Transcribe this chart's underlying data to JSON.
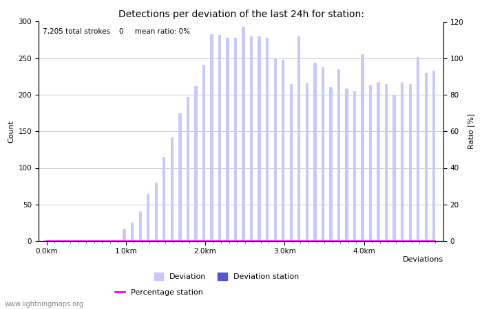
{
  "title": "Detections per deviation of the last 24h for station:",
  "subtitle": "7,205 total strokes    0     mean ratio: 0%",
  "xlabel": "Deviations",
  "ylabel_left": "Count",
  "ylabel_right": "Ratio [%]",
  "ylim_left": [
    0,
    300
  ],
  "ylim_right": [
    0,
    120
  ],
  "yticks_left": [
    0,
    50,
    100,
    150,
    200,
    250,
    300
  ],
  "yticks_right": [
    0,
    20,
    40,
    60,
    80,
    100,
    120
  ],
  "xtick_labels": [
    "0.0km",
    "1.0km",
    "2.0km",
    "3.0km",
    "4.0km"
  ],
  "xtick_positions": [
    0,
    10,
    20,
    30,
    40
  ],
  "bar_color": "#c8c8ff",
  "bar_station_color": "#5555cc",
  "line_color": "#ff00ff",
  "background_color": "#ffffff",
  "grid_color": "#bbbbbb",
  "title_fontsize": 10,
  "subtitle_fontsize": 7.5,
  "axis_label_fontsize": 8,
  "tick_fontsize": 7.5,
  "legend_fontsize": 8,
  "watermark": "www.lightningmaps.org",
  "deviation_values": [
    2,
    1,
    1,
    1,
    1,
    1,
    1,
    1,
    1,
    1,
    17,
    25,
    40,
    65,
    80,
    115,
    142,
    175,
    197,
    212,
    240,
    283,
    282,
    278,
    278,
    293,
    280,
    280,
    278,
    250,
    248,
    215,
    280,
    216,
    243,
    238,
    210,
    235,
    208,
    205,
    255,
    213,
    217,
    215,
    200,
    217,
    215,
    252,
    230,
    233
  ],
  "station_values": [
    0,
    0,
    0,
    0,
    0,
    0,
    0,
    0,
    0,
    0,
    0,
    0,
    0,
    0,
    0,
    0,
    0,
    0,
    0,
    0,
    0,
    0,
    0,
    0,
    0,
    0,
    0,
    0,
    0,
    0,
    0,
    0,
    0,
    0,
    0,
    0,
    0,
    0,
    0,
    0,
    0,
    0,
    0,
    0,
    0,
    0,
    0,
    0,
    0,
    0
  ],
  "percentage_values": [
    0,
    0,
    0,
    0,
    0,
    0,
    0,
    0,
    0,
    0,
    0,
    0,
    0,
    0,
    0,
    0,
    0,
    0,
    0,
    0,
    0,
    0,
    0,
    0,
    0,
    0,
    0,
    0,
    0,
    0,
    0,
    0,
    0,
    0,
    0,
    0,
    0,
    0,
    0,
    0,
    0,
    0,
    0,
    0,
    0,
    0,
    0,
    0,
    0,
    0
  ],
  "n_bars": 50
}
